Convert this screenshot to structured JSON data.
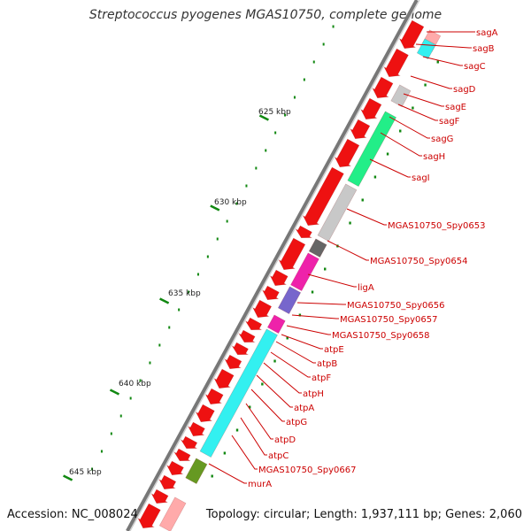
{
  "title": "Streptococcus pyogenes MGAS10750, complete genome",
  "footer": {
    "accession": "Accession: NC_008024",
    "summary": "Topology: circular; Length: 1,937,111 bp; Genes: 2,060"
  },
  "scale_labels": [
    "625 kbp",
    "630 kbp",
    "635 kbp",
    "640 kbp",
    "645 kbp"
  ],
  "gene_labels": [
    "sagA",
    "sagB",
    "sagC",
    "sagD",
    "sagE",
    "sagF",
    "sagG",
    "sagH",
    "sagI",
    "MGAS10750_Spy0653",
    "MGAS10750_Spy0654",
    "ligA",
    "MGAS10750_Spy0656",
    "MGAS10750_Spy0657",
    "MGAS10750_Spy0658",
    "atpE",
    "atpB",
    "atpF",
    "atpH",
    "atpA",
    "atpG",
    "atpD",
    "atpC",
    "MGAS10750_Spy0667",
    "murA"
  ],
  "colors": {
    "backbone": "#777777",
    "label": "#cc0000",
    "forward_cds": "#ee1111",
    "tick": "#118811",
    "cyan": "#33f0f0",
    "green": "#22ee88",
    "gray": "#c8c8c8",
    "dark_gray": "#666666",
    "magenta": "#ee22aa",
    "violet": "#7766cc",
    "olive": "#669922",
    "pink": "#ffaaaa"
  }
}
